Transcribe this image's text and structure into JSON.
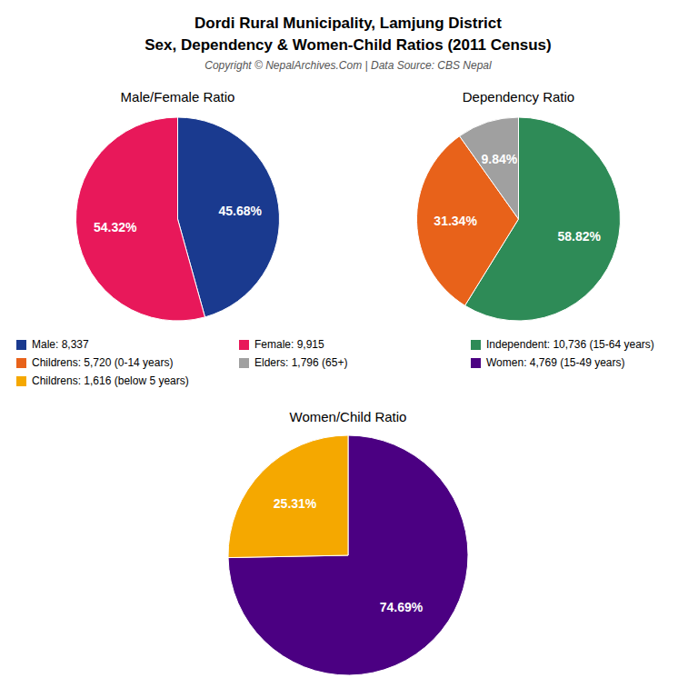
{
  "title": "Dordi Rural Municipality, Lamjung District",
  "subtitle": "Sex, Dependency & Women-Child Ratios (2011 Census)",
  "annotations": [
    "Copyright © NepalArchives.Com | Data Source: CBS Nepal"
  ],
  "legend": "center",
  "chart_data": [
    {
      "type": "pie",
      "title": "Male/Female Ratio",
      "categories": [
        "Male: 8,337",
        "Female: 9,915"
      ],
      "values": [
        45.68,
        54.32
      ],
      "value_labels": [
        "45.68%",
        "54.32%"
      ],
      "colors": [
        "#1a3a8f",
        "#e8185a"
      ],
      "data_labels": true
    },
    {
      "type": "pie",
      "title": "Dependency Ratio",
      "categories": [
        "Independent: 10,736 (15-64 years)",
        "Childrens: 5,720 (0-14 years)",
        "Elders: 1,796 (65+)"
      ],
      "values": [
        58.82,
        31.34,
        9.84
      ],
      "value_labels": [
        "58.82%",
        "31.34%",
        "9.84%"
      ],
      "colors": [
        "#2e8b57",
        "#e8621a",
        "#a0a0a0"
      ],
      "data_labels": true
    },
    {
      "type": "pie",
      "title": "Women/Child Ratio",
      "categories": [
        "Women: 4,769 (15-49 years)",
        "Childrens: 1,616 (below 5 years)"
      ],
      "values": [
        74.69,
        25.31
      ],
      "value_labels": [
        "74.69%",
        "25.31%"
      ],
      "colors": [
        "#4b0082",
        "#f5a800"
      ],
      "data_labels": true
    }
  ]
}
